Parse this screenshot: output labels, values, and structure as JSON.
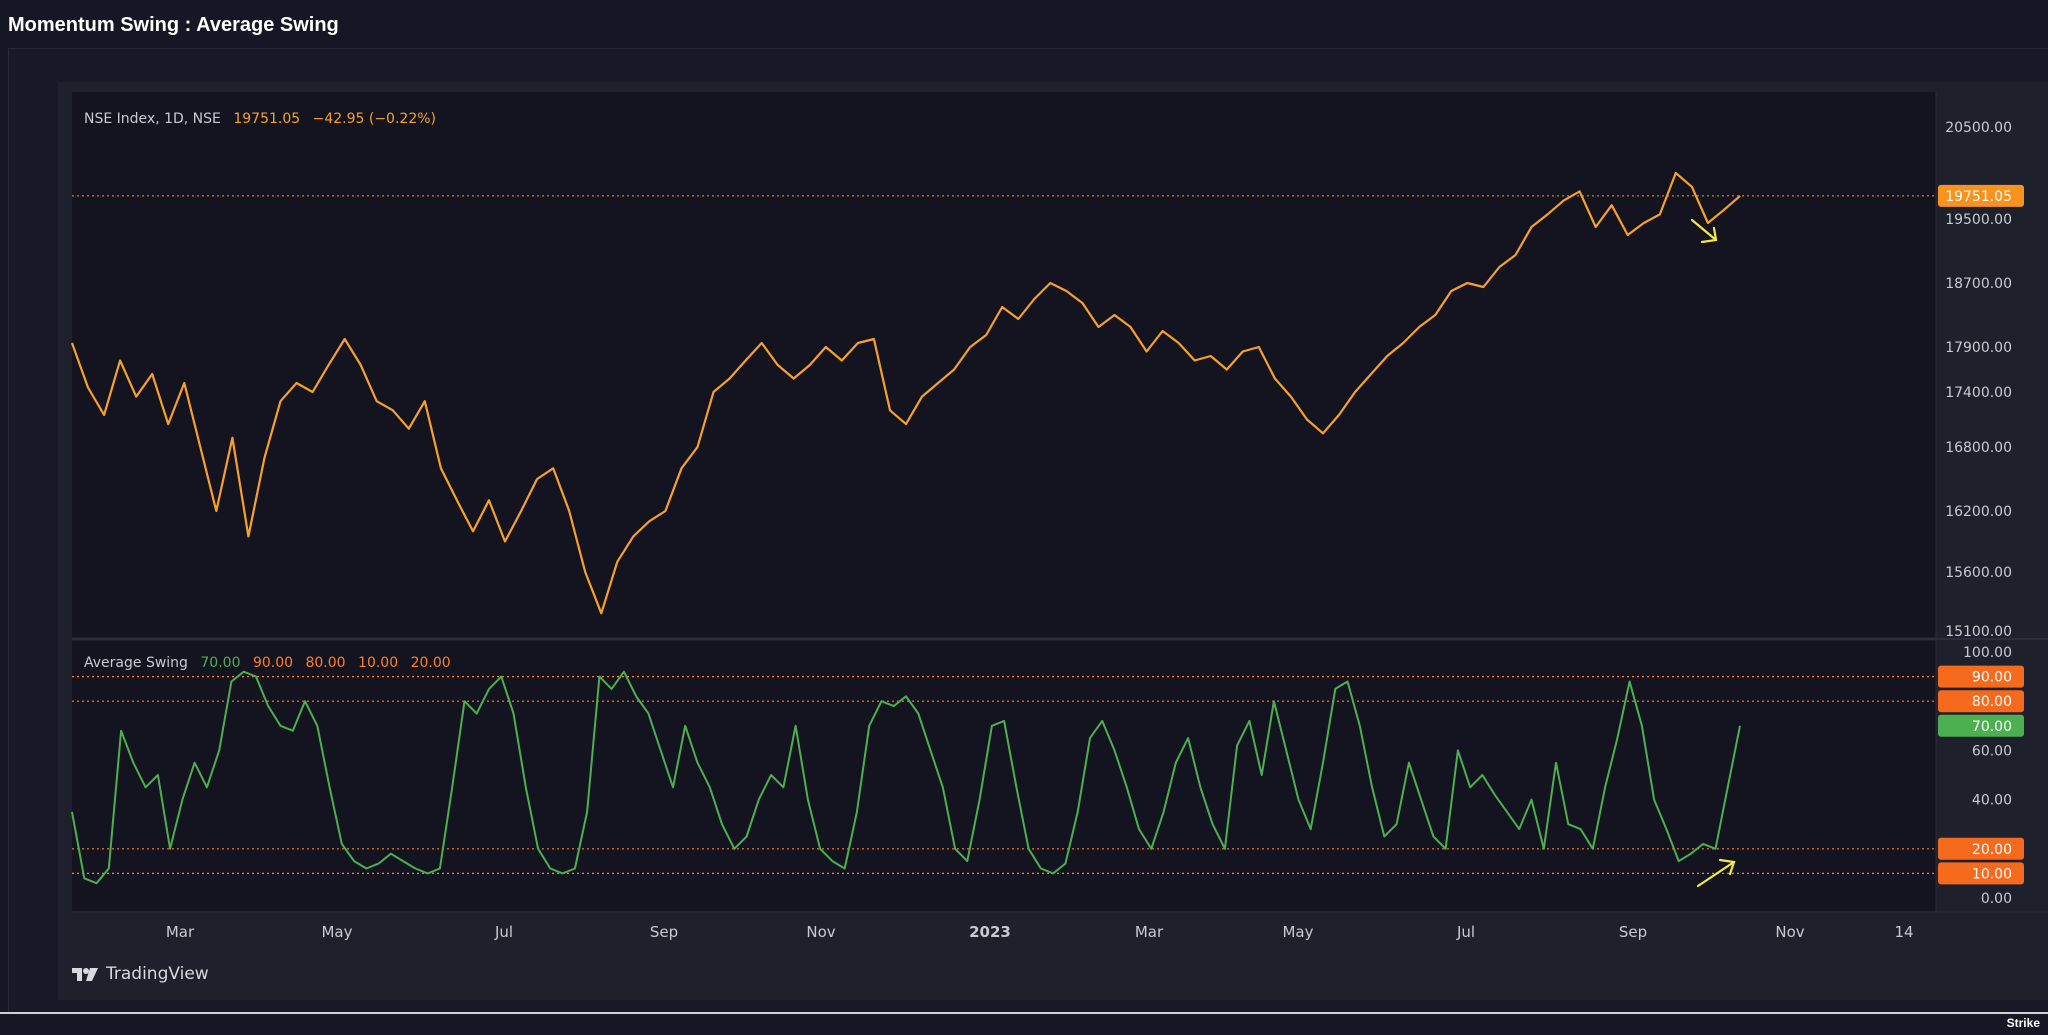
{
  "page": {
    "title": "Momentum Swing : Average Swing",
    "footer_brand": "TradingView",
    "corner_logo": "Strike"
  },
  "price_legend": {
    "symbol": "NSE Index, 1D, NSE",
    "last": "19751.05",
    "change": "−42.95 (−0.22%)"
  },
  "osc_legend": {
    "name": "Average Swing",
    "values": [
      "70.00",
      "90.00",
      "80.00",
      "10.00",
      "20.00"
    ],
    "value_colors": [
      "#4caf50",
      "#ff7f2a",
      "#ff7f2a",
      "#ff7f2a",
      "#ff7f2a"
    ]
  },
  "colors": {
    "price_line": "#f7a12b",
    "osc_line": "#4caf50",
    "level_line": "#ff7f2a",
    "last_price_badge": "#f7931e",
    "osc_badge": "#4caf50",
    "level_badge": "#f56a1c",
    "arrow": "#f5e94a",
    "axis_text": "#c8cad2"
  },
  "x_axis": {
    "labels": [
      {
        "text": "Mar",
        "bold": false
      },
      {
        "text": "May",
        "bold": false
      },
      {
        "text": "Jul",
        "bold": false
      },
      {
        "text": "Sep",
        "bold": false
      },
      {
        "text": "Nov",
        "bold": false
      },
      {
        "text": "2023",
        "bold": true
      },
      {
        "text": "Mar",
        "bold": false
      },
      {
        "text": "May",
        "bold": false
      },
      {
        "text": "Jul",
        "bold": false
      },
      {
        "text": "Sep",
        "bold": false
      },
      {
        "text": "Nov",
        "bold": false
      },
      {
        "text": "14",
        "bold": false
      }
    ]
  },
  "chart_data": [
    {
      "type": "line",
      "series": [
        {
          "name": "NSE Index, 1D, NSE",
          "last_value": 19751.05
        }
      ],
      "x_labels": [
        "Mar",
        "May",
        "Jul",
        "Sep",
        "Nov",
        "2023",
        "Mar",
        "May",
        "Jul",
        "Sep",
        "Nov",
        "14"
      ],
      "y_ticks": [
        15100,
        15600,
        16200,
        16800,
        17400,
        17900,
        18700,
        19500,
        20500
      ],
      "price_line_value": 19751.05,
      "values": [
        17950,
        17450,
        17150,
        17750,
        17350,
        17600,
        17050,
        17500,
        16800,
        16200,
        16900,
        15950,
        16700,
        17300,
        17500,
        17400,
        17700,
        18000,
        17700,
        17300,
        17200,
        17000,
        17300,
        16600,
        16300,
        16000,
        16300,
        15900,
        16200,
        16500,
        16600,
        16200,
        15600,
        15250,
        15700,
        15950,
        16100,
        16200,
        16600,
        16800,
        17400,
        17550,
        17750,
        17950,
        17700,
        17550,
        17700,
        17900,
        17750,
        17950,
        18000,
        17200,
        17050,
        17350,
        17500,
        17650,
        17900,
        18050,
        18400,
        18250,
        18500,
        18700,
        18600,
        18450,
        18150,
        18300,
        18150,
        17850,
        18100,
        17950,
        17750,
        17800,
        17650,
        17850,
        17900,
        17550,
        17350,
        17100,
        16950,
        17150,
        17400,
        17600,
        17800,
        17950,
        18150,
        18300,
        18600,
        18700,
        18650,
        18900,
        19050,
        19400,
        19550,
        19700,
        19800,
        19400,
        19650,
        19300,
        19450,
        19550,
        20000,
        19850,
        19450,
        19600,
        19751.05
      ],
      "title": ""
    },
    {
      "type": "line",
      "series": [
        {
          "name": "Average Swing",
          "last_value": 70.0
        }
      ],
      "levels": [
        90,
        80,
        20,
        10
      ],
      "y_ticks": [
        0,
        20,
        40,
        60,
        80,
        100
      ],
      "values": [
        35,
        8,
        6,
        12,
        68,
        55,
        45,
        50,
        20,
        40,
        55,
        45,
        60,
        88,
        92,
        90,
        78,
        70,
        68,
        80,
        70,
        45,
        22,
        15,
        12,
        14,
        18,
        15,
        12,
        10,
        12,
        45,
        80,
        75,
        85,
        90,
        75,
        45,
        20,
        12,
        10,
        12,
        35,
        90,
        85,
        92,
        82,
        75,
        60,
        45,
        70,
        55,
        45,
        30,
        20,
        25,
        40,
        50,
        45,
        70,
        40,
        20,
        15,
        12,
        35,
        70,
        80,
        78,
        82,
        75,
        60,
        45,
        20,
        15,
        40,
        70,
        72,
        45,
        20,
        12,
        10,
        14,
        35,
        65,
        72,
        60,
        45,
        28,
        20,
        35,
        55,
        65,
        45,
        30,
        20,
        62,
        72,
        50,
        80,
        60,
        40,
        28,
        55,
        85,
        88,
        70,
        45,
        25,
        30,
        55,
        40,
        25,
        20,
        60,
        45,
        50,
        42,
        35,
        28,
        40,
        20,
        55,
        30,
        28,
        20,
        45,
        65,
        88,
        70,
        40,
        28,
        15,
        18,
        22,
        20,
        45,
        70
      ],
      "title": ""
    }
  ]
}
